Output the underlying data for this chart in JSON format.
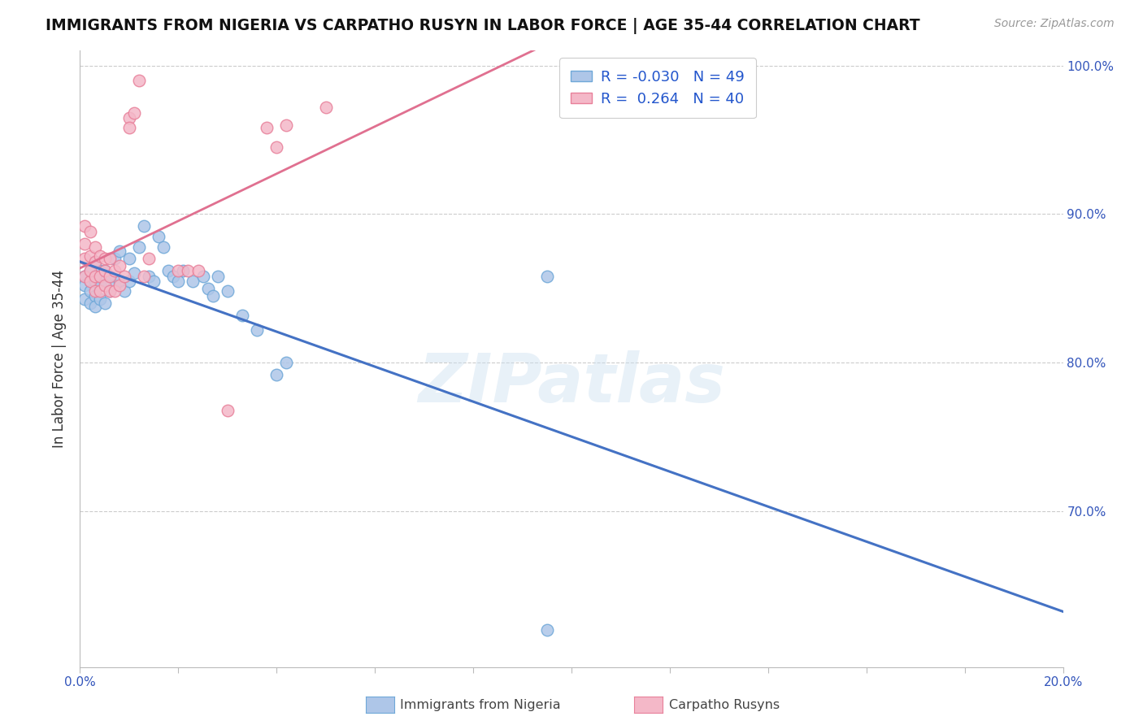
{
  "title": "IMMIGRANTS FROM NIGERIA VS CARPATHO RUSYN IN LABOR FORCE | AGE 35-44 CORRELATION CHART",
  "source": "Source: ZipAtlas.com",
  "ylabel": "In Labor Force | Age 35-44",
  "xmin": 0.0,
  "xmax": 0.2,
  "ymin": 0.595,
  "ymax": 1.01,
  "y_ticks": [
    0.7,
    0.8,
    0.9,
    1.0
  ],
  "y_tick_labels": [
    "70.0%",
    "80.0%",
    "90.0%",
    "100.0%"
  ],
  "nigeria_color": "#aec6e8",
  "nigeria_edge": "#6fa8d8",
  "rusyn_color": "#f4b8c8",
  "rusyn_edge": "#e8809a",
  "nigeria_line_color": "#4472c4",
  "rusyn_line_color": "#e07090",
  "nigeria_label": "R = -0.030   N = 49",
  "rusyn_label": "R =  0.264   N = 40",
  "watermark": "ZIPatlas",
  "background_color": "#ffffff",
  "grid_color": "#cccccc",
  "nigeria_x": [
    0.001,
    0.001,
    0.001,
    0.002,
    0.002,
    0.002,
    0.002,
    0.003,
    0.003,
    0.003,
    0.003,
    0.004,
    0.004,
    0.004,
    0.005,
    0.005,
    0.005,
    0.006,
    0.006,
    0.007,
    0.007,
    0.008,
    0.008,
    0.009,
    0.01,
    0.01,
    0.011,
    0.012,
    0.013,
    0.014,
    0.015,
    0.016,
    0.017,
    0.018,
    0.019,
    0.02,
    0.021,
    0.023,
    0.025,
    0.026,
    0.027,
    0.028,
    0.03,
    0.033,
    0.036,
    0.04,
    0.042,
    0.095,
    0.095
  ],
  "nigeria_y": [
    0.858,
    0.852,
    0.843,
    0.862,
    0.855,
    0.848,
    0.84,
    0.868,
    0.855,
    0.845,
    0.838,
    0.862,
    0.852,
    0.843,
    0.862,
    0.855,
    0.84,
    0.858,
    0.848,
    0.87,
    0.852,
    0.875,
    0.855,
    0.848,
    0.87,
    0.855,
    0.86,
    0.878,
    0.892,
    0.858,
    0.855,
    0.885,
    0.878,
    0.862,
    0.858,
    0.855,
    0.862,
    0.855,
    0.858,
    0.85,
    0.845,
    0.858,
    0.848,
    0.832,
    0.822,
    0.792,
    0.8,
    0.858,
    0.62
  ],
  "rusyn_x": [
    0.001,
    0.001,
    0.001,
    0.001,
    0.002,
    0.002,
    0.002,
    0.002,
    0.003,
    0.003,
    0.003,
    0.003,
    0.004,
    0.004,
    0.004,
    0.005,
    0.005,
    0.005,
    0.006,
    0.006,
    0.006,
    0.007,
    0.007,
    0.008,
    0.008,
    0.009,
    0.01,
    0.01,
    0.011,
    0.012,
    0.013,
    0.014,
    0.02,
    0.022,
    0.024,
    0.03,
    0.038,
    0.04,
    0.042,
    0.05
  ],
  "rusyn_y": [
    0.858,
    0.87,
    0.88,
    0.892,
    0.855,
    0.862,
    0.872,
    0.888,
    0.848,
    0.858,
    0.868,
    0.878,
    0.848,
    0.858,
    0.872,
    0.852,
    0.862,
    0.87,
    0.848,
    0.858,
    0.87,
    0.848,
    0.862,
    0.852,
    0.865,
    0.858,
    0.965,
    0.958,
    0.968,
    0.99,
    0.858,
    0.87,
    0.862,
    0.862,
    0.862,
    0.768,
    0.958,
    0.945,
    0.96,
    0.972
  ]
}
